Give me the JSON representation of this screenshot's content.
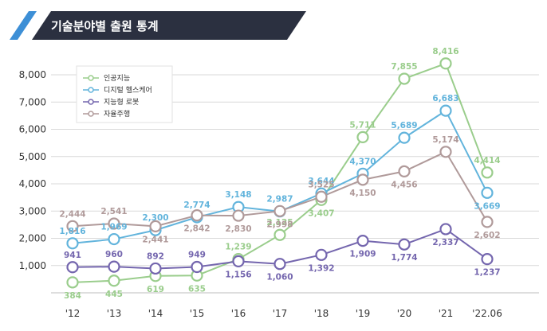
{
  "header": {
    "title": "기술분야별 출원 통계"
  },
  "colors": {
    "banner": "#2b3040",
    "accent": "#3d8fd6",
    "grid": "#d9d9d9"
  },
  "chart_data": {
    "type": "line",
    "title": "기술분야별 출원 통계",
    "xlabel": "",
    "ylabel": "",
    "ylim": [
      0,
      8000
    ],
    "yticks": [
      0,
      1000,
      2000,
      3000,
      4000,
      5000,
      6000,
      7000,
      8000
    ],
    "ytick_labels": [
      "",
      "1,000",
      "2,000",
      "3,000",
      "4,000",
      "5,000",
      "6,000",
      "7,000",
      "8,000"
    ],
    "categories": [
      "'12",
      "'13",
      "'14",
      "'15",
      "'16",
      "'17",
      "'18",
      "'19",
      "'20",
      "'21",
      "'22.06"
    ],
    "legend_position": "top-left",
    "series": [
      {
        "name": "인공지능",
        "color": "#9acd8c",
        "values": [
          384,
          445,
          619,
          635,
          1239,
          2125,
          3407,
          5711,
          7855,
          8416,
          4414
        ],
        "labels": [
          "384",
          "445",
          "619",
          "635",
          "1,239",
          "2,125",
          "3,407",
          "5,711",
          "7,855",
          "8,416",
          "4,414"
        ],
        "label_pos": [
          "below",
          "below",
          "below",
          "below",
          "above",
          "above",
          "below",
          "above",
          "above",
          "above",
          "above"
        ]
      },
      {
        "name": "디지털 헬스케어",
        "color": "#62b4dc",
        "values": [
          1816,
          1969,
          2300,
          2774,
          3148,
          2987,
          3644,
          4370,
          5689,
          6683,
          3669
        ],
        "labels": [
          "1,816",
          "1,969",
          "2,300",
          "2,774",
          "3,148",
          "2,987",
          "3,644",
          "4,370",
          "5,689",
          "6,683",
          "3,669"
        ],
        "label_pos": [
          "above",
          "above",
          "above",
          "above",
          "above",
          "above",
          "above",
          "above",
          "above",
          "above",
          "below"
        ]
      },
      {
        "name": "지능형 로봇",
        "color": "#7466ae",
        "values": [
          941,
          960,
          892,
          949,
          1156,
          1060,
          1392,
          1909,
          1774,
          2337,
          1237
        ],
        "labels": [
          "941",
          "960",
          "892",
          "949",
          "1,156",
          "1,060",
          "1,392",
          "1,909",
          "1,774",
          "2,337",
          "1,237"
        ],
        "label_pos": [
          "above",
          "above",
          "above",
          "above",
          "below",
          "below",
          "below",
          "below",
          "below",
          "below",
          "below"
        ]
      },
      {
        "name": "자율주행",
        "color": "#b09a9a",
        "values": [
          2444,
          2541,
          2441,
          2842,
          2830,
          2998,
          3525,
          4150,
          4456,
          5174,
          2602
        ],
        "labels": [
          "2,444",
          "2,541",
          "2,441",
          "2,842",
          "2,830",
          "2,998",
          "3,525",
          "4,150",
          "4,456",
          "5,174",
          "2,602"
        ],
        "label_pos": [
          "above",
          "above",
          "below",
          "below",
          "below",
          "below",
          "above",
          "below",
          "below",
          "above",
          "below"
        ]
      }
    ]
  }
}
